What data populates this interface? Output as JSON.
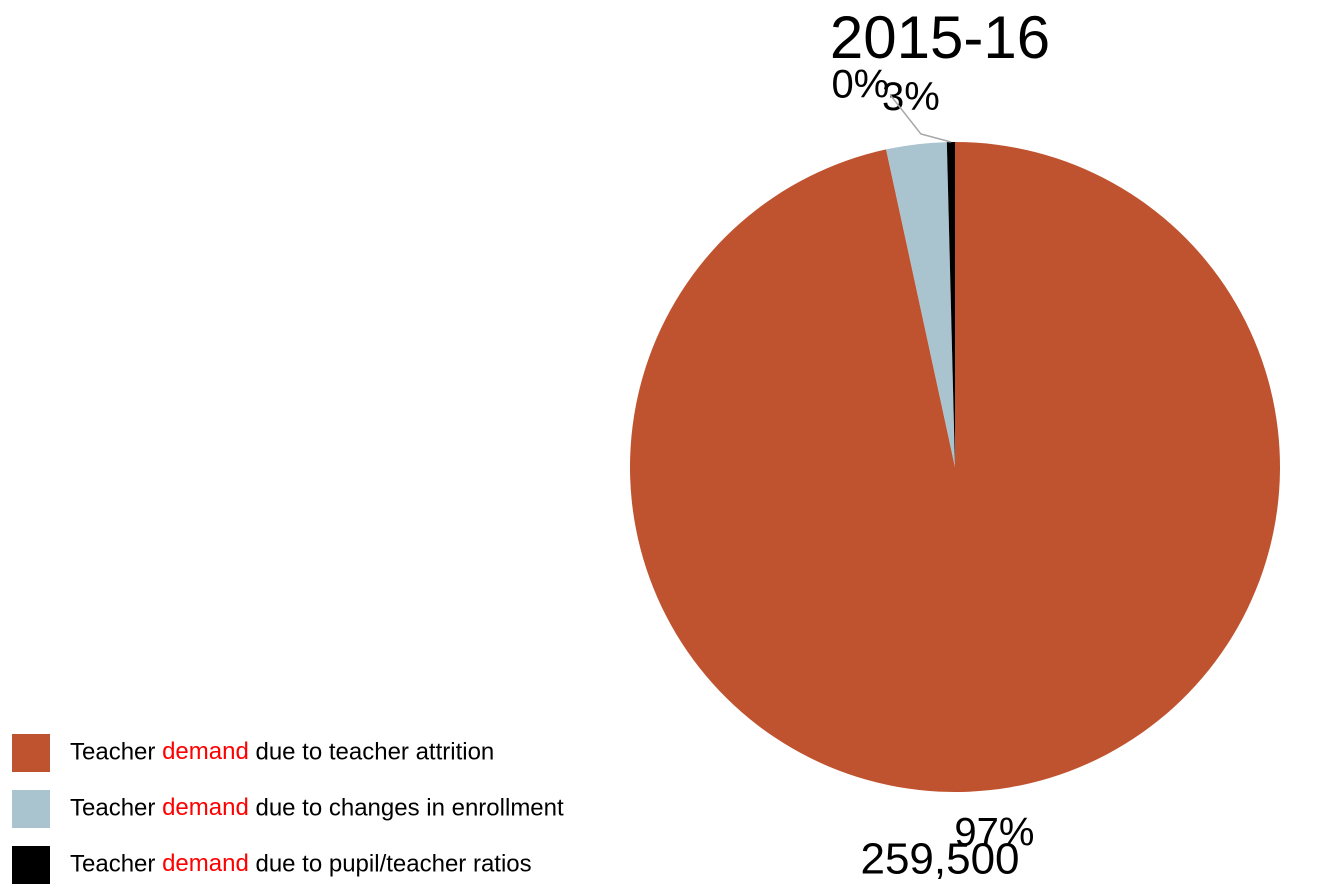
{
  "chart_data": {
    "type": "pie",
    "title": "2015-16",
    "total": "259,500",
    "highlight": "demand",
    "highlight_color": "#ff0000",
    "categories": [
      "Teacher demand due to teacher attrition",
      "Teacher demand due to changes in enrollment",
      "Teacher demand due to pupil/teacher ratios"
    ],
    "values": [
      96.6,
      3.0,
      0.4
    ],
    "value_labels": [
      "97%",
      "3%",
      "0%"
    ],
    "colors": [
      "#c0532f",
      "#a9c4ce",
      "#000000"
    ],
    "legend": "bottom-left"
  }
}
